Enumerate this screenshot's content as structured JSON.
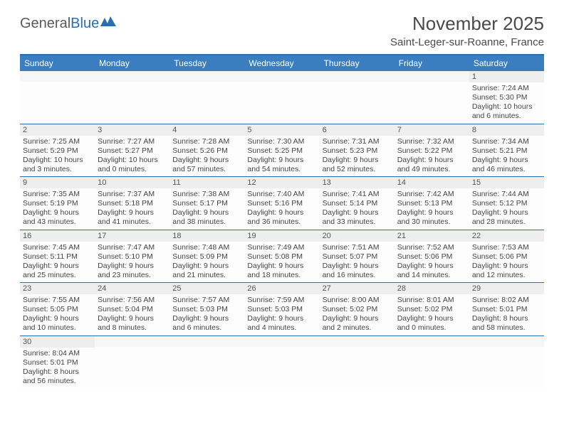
{
  "brand": {
    "part1": "General",
    "part2": "Blue"
  },
  "title": "November 2025",
  "location": "Saint-Leger-sur-Roanne, France",
  "styling": {
    "header_bg": "#3a7ec0",
    "header_text": "#ffffff",
    "divider_color": "#2a6db0",
    "daybar_bg": "#eeeeee",
    "body_text": "#444444",
    "title_fontsize": 26,
    "location_fontsize": 15,
    "dow_fontsize": 12,
    "cell_fontsize": 10.5
  },
  "days_of_week": [
    "Sunday",
    "Monday",
    "Tuesday",
    "Wednesday",
    "Thursday",
    "Friday",
    "Saturday"
  ],
  "weeks": [
    [
      null,
      null,
      null,
      null,
      null,
      null,
      {
        "n": "1",
        "sr": "Sunrise: 7:24 AM",
        "ss": "Sunset: 5:30 PM",
        "dl1": "Daylight: 10 hours",
        "dl2": "and 6 minutes."
      }
    ],
    [
      {
        "n": "2",
        "sr": "Sunrise: 7:25 AM",
        "ss": "Sunset: 5:29 PM",
        "dl1": "Daylight: 10 hours",
        "dl2": "and 3 minutes."
      },
      {
        "n": "3",
        "sr": "Sunrise: 7:27 AM",
        "ss": "Sunset: 5:27 PM",
        "dl1": "Daylight: 10 hours",
        "dl2": "and 0 minutes."
      },
      {
        "n": "4",
        "sr": "Sunrise: 7:28 AM",
        "ss": "Sunset: 5:26 PM",
        "dl1": "Daylight: 9 hours",
        "dl2": "and 57 minutes."
      },
      {
        "n": "5",
        "sr": "Sunrise: 7:30 AM",
        "ss": "Sunset: 5:25 PM",
        "dl1": "Daylight: 9 hours",
        "dl2": "and 54 minutes."
      },
      {
        "n": "6",
        "sr": "Sunrise: 7:31 AM",
        "ss": "Sunset: 5:23 PM",
        "dl1": "Daylight: 9 hours",
        "dl2": "and 52 minutes."
      },
      {
        "n": "7",
        "sr": "Sunrise: 7:32 AM",
        "ss": "Sunset: 5:22 PM",
        "dl1": "Daylight: 9 hours",
        "dl2": "and 49 minutes."
      },
      {
        "n": "8",
        "sr": "Sunrise: 7:34 AM",
        "ss": "Sunset: 5:21 PM",
        "dl1": "Daylight: 9 hours",
        "dl2": "and 46 minutes."
      }
    ],
    [
      {
        "n": "9",
        "sr": "Sunrise: 7:35 AM",
        "ss": "Sunset: 5:19 PM",
        "dl1": "Daylight: 9 hours",
        "dl2": "and 43 minutes."
      },
      {
        "n": "10",
        "sr": "Sunrise: 7:37 AM",
        "ss": "Sunset: 5:18 PM",
        "dl1": "Daylight: 9 hours",
        "dl2": "and 41 minutes."
      },
      {
        "n": "11",
        "sr": "Sunrise: 7:38 AM",
        "ss": "Sunset: 5:17 PM",
        "dl1": "Daylight: 9 hours",
        "dl2": "and 38 minutes."
      },
      {
        "n": "12",
        "sr": "Sunrise: 7:40 AM",
        "ss": "Sunset: 5:16 PM",
        "dl1": "Daylight: 9 hours",
        "dl2": "and 36 minutes."
      },
      {
        "n": "13",
        "sr": "Sunrise: 7:41 AM",
        "ss": "Sunset: 5:14 PM",
        "dl1": "Daylight: 9 hours",
        "dl2": "and 33 minutes."
      },
      {
        "n": "14",
        "sr": "Sunrise: 7:42 AM",
        "ss": "Sunset: 5:13 PM",
        "dl1": "Daylight: 9 hours",
        "dl2": "and 30 minutes."
      },
      {
        "n": "15",
        "sr": "Sunrise: 7:44 AM",
        "ss": "Sunset: 5:12 PM",
        "dl1": "Daylight: 9 hours",
        "dl2": "and 28 minutes."
      }
    ],
    [
      {
        "n": "16",
        "sr": "Sunrise: 7:45 AM",
        "ss": "Sunset: 5:11 PM",
        "dl1": "Daylight: 9 hours",
        "dl2": "and 25 minutes."
      },
      {
        "n": "17",
        "sr": "Sunrise: 7:47 AM",
        "ss": "Sunset: 5:10 PM",
        "dl1": "Daylight: 9 hours",
        "dl2": "and 23 minutes."
      },
      {
        "n": "18",
        "sr": "Sunrise: 7:48 AM",
        "ss": "Sunset: 5:09 PM",
        "dl1": "Daylight: 9 hours",
        "dl2": "and 21 minutes."
      },
      {
        "n": "19",
        "sr": "Sunrise: 7:49 AM",
        "ss": "Sunset: 5:08 PM",
        "dl1": "Daylight: 9 hours",
        "dl2": "and 18 minutes."
      },
      {
        "n": "20",
        "sr": "Sunrise: 7:51 AM",
        "ss": "Sunset: 5:07 PM",
        "dl1": "Daylight: 9 hours",
        "dl2": "and 16 minutes."
      },
      {
        "n": "21",
        "sr": "Sunrise: 7:52 AM",
        "ss": "Sunset: 5:06 PM",
        "dl1": "Daylight: 9 hours",
        "dl2": "and 14 minutes."
      },
      {
        "n": "22",
        "sr": "Sunrise: 7:53 AM",
        "ss": "Sunset: 5:06 PM",
        "dl1": "Daylight: 9 hours",
        "dl2": "and 12 minutes."
      }
    ],
    [
      {
        "n": "23",
        "sr": "Sunrise: 7:55 AM",
        "ss": "Sunset: 5:05 PM",
        "dl1": "Daylight: 9 hours",
        "dl2": "and 10 minutes."
      },
      {
        "n": "24",
        "sr": "Sunrise: 7:56 AM",
        "ss": "Sunset: 5:04 PM",
        "dl1": "Daylight: 9 hours",
        "dl2": "and 8 minutes."
      },
      {
        "n": "25",
        "sr": "Sunrise: 7:57 AM",
        "ss": "Sunset: 5:03 PM",
        "dl1": "Daylight: 9 hours",
        "dl2": "and 6 minutes."
      },
      {
        "n": "26",
        "sr": "Sunrise: 7:59 AM",
        "ss": "Sunset: 5:03 PM",
        "dl1": "Daylight: 9 hours",
        "dl2": "and 4 minutes."
      },
      {
        "n": "27",
        "sr": "Sunrise: 8:00 AM",
        "ss": "Sunset: 5:02 PM",
        "dl1": "Daylight: 9 hours",
        "dl2": "and 2 minutes."
      },
      {
        "n": "28",
        "sr": "Sunrise: 8:01 AM",
        "ss": "Sunset: 5:02 PM",
        "dl1": "Daylight: 9 hours",
        "dl2": "and 0 minutes."
      },
      {
        "n": "29",
        "sr": "Sunrise: 8:02 AM",
        "ss": "Sunset: 5:01 PM",
        "dl1": "Daylight: 8 hours",
        "dl2": "and 58 minutes."
      }
    ],
    [
      {
        "n": "30",
        "sr": "Sunrise: 8:04 AM",
        "ss": "Sunset: 5:01 PM",
        "dl1": "Daylight: 8 hours",
        "dl2": "and 56 minutes."
      },
      null,
      null,
      null,
      null,
      null,
      null
    ]
  ]
}
